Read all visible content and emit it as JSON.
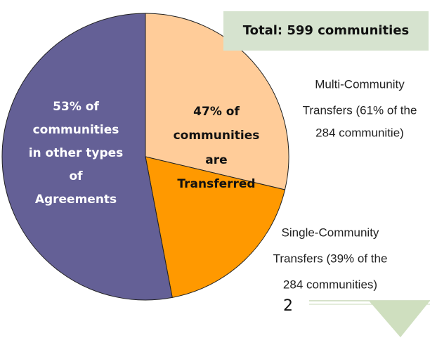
{
  "chart_data": {
    "type": "pie",
    "title": "Total: 599 communities",
    "categories": [
      [
        "Multi-Community",
        "Transfers (61% of the",
        "284 communitie)"
      ],
      [
        "Single-Community",
        "Transfers (39% of the",
        "284 communities)"
      ],
      [
        "53% of",
        "communities",
        "in other types",
        "of",
        "Agreements"
      ]
    ],
    "values": [
      28.7,
      18.3,
      53
    ],
    "colors": [
      "#ffcc99",
      "#ff9900",
      "#646096"
    ],
    "annotations": [
      [
        "47% of",
        "communities",
        "are",
        "Transferred"
      ]
    ],
    "page_number": "2"
  }
}
